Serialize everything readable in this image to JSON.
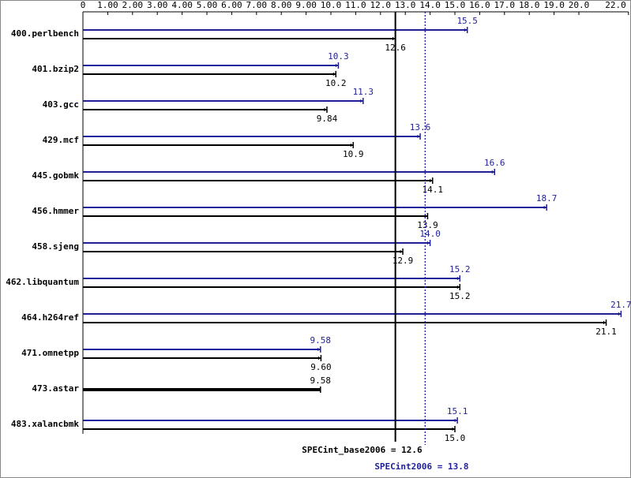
{
  "chart_data": {
    "type": "bar",
    "orientation": "horizontal",
    "categories": [
      "400.perlbench",
      "401.bzip2",
      "403.gcc",
      "429.mcf",
      "445.gobmk",
      "456.hmmer",
      "458.sjeng",
      "462.libquantum",
      "464.h264ref",
      "471.omnetpp",
      "473.astar",
      "483.xalancbmk"
    ],
    "series": [
      {
        "color": "#1f1f9a",
        "values": [
          15.5,
          10.3,
          11.3,
          13.6,
          16.6,
          18.7,
          14.0,
          15.2,
          21.7,
          9.58,
          null,
          15.1
        ],
        "value_labels": [
          "15.5",
          "10.3",
          "11.3",
          "13.6",
          "16.6",
          "18.7",
          "14.0",
          "15.2",
          "21.7",
          "9.58",
          null,
          "15.1"
        ]
      },
      {
        "color": "#000000",
        "values": [
          12.6,
          10.2,
          9.84,
          10.9,
          14.1,
          13.9,
          12.9,
          15.2,
          21.1,
          9.6,
          9.58,
          15.0
        ],
        "value_labels": [
          "12.6",
          "10.2",
          "9.84",
          "10.9",
          "14.1",
          "13.9",
          "12.9",
          "15.2",
          "21.1",
          "9.60",
          "9.58",
          "15.0"
        ]
      }
    ],
    "xlim": [
      0,
      22
    ],
    "xticks": [
      0,
      {
        "value": 1,
        "label": "1.00"
      },
      {
        "value": 2,
        "label": "2.00"
      },
      {
        "value": 3,
        "label": "3.00"
      },
      {
        "value": 4,
        "label": "4.00"
      },
      {
        "value": 5,
        "label": "5.00"
      },
      {
        "value": 6,
        "label": "6.00"
      },
      {
        "value": 7,
        "label": "7.00"
      },
      {
        "value": 8,
        "label": "8.00"
      },
      {
        "value": 9,
        "label": "9.00"
      },
      {
        "value": 10,
        "label": "10.0"
      },
      {
        "value": 11,
        "label": "11.0"
      },
      {
        "value": 12,
        "label": "12.0"
      },
      {
        "value": 13,
        "label": "13.0"
      },
      {
        "value": 14,
        "label": "14.0"
      },
      {
        "value": 15,
        "label": "15.0"
      },
      {
        "value": 16,
        "label": "16.0"
      },
      {
        "value": 17,
        "label": "17.0"
      },
      {
        "value": 18,
        "label": "18.0"
      },
      {
        "value": 19,
        "label": "19.0"
      },
      {
        "value": 20,
        "label": "20.0"
      },
      {
        "value": 22,
        "label": "22.0"
      }
    ],
    "reference_lines": [
      {
        "label": "SPECint_base2006 = 12.6",
        "value": 12.6,
        "color": "#000000",
        "style": "solid"
      },
      {
        "label": "SPECint2006 = 13.8",
        "value": 13.8,
        "color": "#1f1f9a",
        "style": "dotted"
      }
    ]
  }
}
